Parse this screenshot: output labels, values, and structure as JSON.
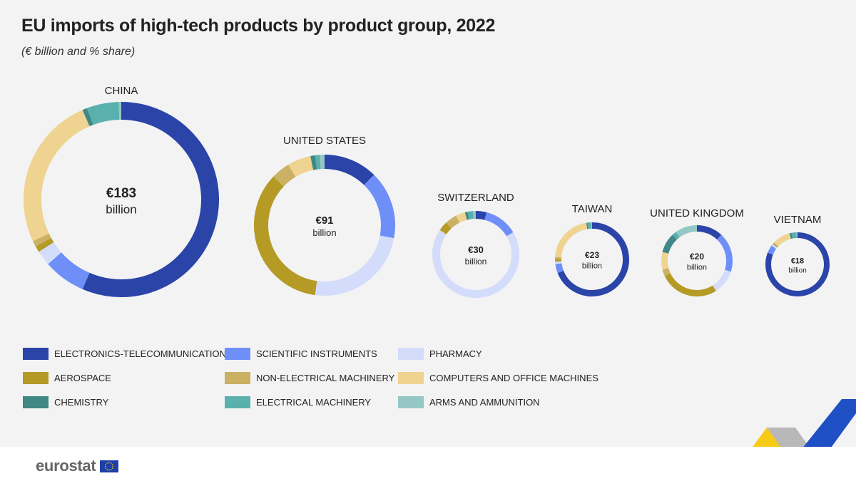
{
  "title": "EU imports of high-tech products by product group, 2022",
  "subtitle": "(€ billion and % share)",
  "colors": {
    "electronics": "#2a44a8",
    "scientific": "#6f8ff8",
    "pharmacy": "#d4dcfb",
    "aerospace": "#b59a26",
    "non_electrical": "#cab163",
    "computers": "#efd390",
    "chemistry": "#3f8885",
    "electrical": "#5ab0ad",
    "arms": "#94c7c5"
  },
  "chart_data": {
    "type": "pie",
    "variant": "donut",
    "title": "EU imports of high-tech products by product group, 2022",
    "unit": "€ billion and % share",
    "categories": [
      "ELECTRONICS-TELECOMMUNICATIONS",
      "SCIENTIFIC INSTRUMENTS",
      "PHARMACY",
      "AEROSPACE",
      "NON-ELECTRICAL MACHINERY",
      "COMPUTERS AND OFFICE MACHINES",
      "CHEMISTRY",
      "ELECTRICAL MACHINERY",
      "ARMS AND AMMUNITION"
    ],
    "series": [
      {
        "name": "CHINA",
        "total_label": "€183",
        "unit_label": "billion",
        "total": 183,
        "shares": [
          56.5,
          7.0,
          2.5,
          1.0,
          1.0,
          25.5,
          0.8,
          5.3,
          0.4
        ]
      },
      {
        "name": "UNITED STATES",
        "total_label": "€91",
        "unit_label": "billion",
        "total": 91,
        "shares": [
          11.5,
          14.5,
          22.5,
          32.5,
          4.0,
          5.0,
          1.0,
          1.0,
          1.0
        ]
      },
      {
        "name": "SWITZERLAND",
        "total_label": "€30",
        "unit_label": "billion",
        "total": 30,
        "shares": [
          4.0,
          12.5,
          68.0,
          3.5,
          4.5,
          3.5,
          1.0,
          2.0,
          1.0
        ]
      },
      {
        "name": "TAIWAN",
        "total_label": "€23",
        "unit_label": "billion",
        "total": 23,
        "shares": [
          69.0,
          4.0,
          1.0,
          1.0,
          1.0,
          21.5,
          0.5,
          1.5,
          0.5
        ]
      },
      {
        "name": "UNITED KINGDOM",
        "total_label": "€20",
        "unit_label": "billion",
        "total": 20,
        "shares": [
          12.0,
          18.0,
          11.0,
          27.0,
          3.0,
          8.0,
          9.0,
          2.0,
          10.0
        ]
      },
      {
        "name": "VIETNAM",
        "total_label": "€18",
        "unit_label": "billion",
        "total": 18,
        "shares": [
          81.0,
          4.0,
          1.0,
          0.5,
          0.5,
          9.0,
          1.0,
          2.5,
          0.5
        ]
      }
    ]
  },
  "legend": [
    {
      "label": "ELECTRONICS-TELECOMMUNICATIONS",
      "color": "#2a44a8"
    },
    {
      "label": "SCIENTIFIC INSTRUMENTS",
      "color": "#6f8ff8"
    },
    {
      "label": "PHARMACY",
      "color": "#d4dcfb"
    },
    {
      "label": "AEROSPACE",
      "color": "#b59a26"
    },
    {
      "label": "NON-ELECTRICAL MACHINERY",
      "color": "#cab163"
    },
    {
      "label": "COMPUTERS AND OFFICE MACHINES",
      "color": "#efd390"
    },
    {
      "label": "CHEMISTRY",
      "color": "#3f8885"
    },
    {
      "label": "ELECTRICAL MACHINERY",
      "color": "#5ab0ad"
    },
    {
      "label": "ARMS AND AMMUNITION",
      "color": "#94c7c5"
    }
  ],
  "footer": {
    "logo_text": "eurostat",
    "flag_icon": "eu-flag-icon"
  }
}
